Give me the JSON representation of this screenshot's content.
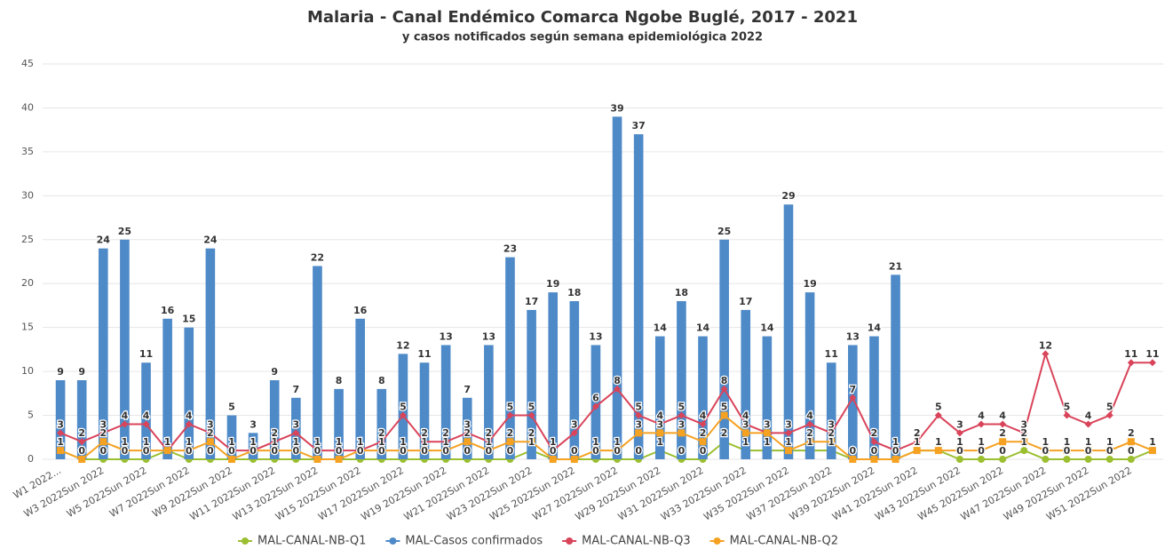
{
  "chart_data": {
    "type": "bar-line",
    "title": "Malaria - Canal Endémico Comarca Ngobe Buglé, 2017 - 2021",
    "subtitle": "y casos notificados según semana epidemiológica 2022",
    "categories": [
      "W1 2022...",
      null,
      "W3 2022Sun 2022",
      null,
      "W5 2022Sun 2022",
      null,
      "W7 2022Sun 2022",
      null,
      "W9 2022Sun 2022",
      null,
      "W11 2022Sun 2022",
      null,
      "W13 2022Sun 2022",
      null,
      "W15 2022Sun 2022",
      null,
      "W17 2022Sun 2022",
      null,
      "W19 2022Sun 2022",
      null,
      "W21 2022Sun 2022",
      null,
      "W23 2022Sun 2022",
      null,
      "W25 2022Sun 2022",
      null,
      "W27 2022Sun 2022",
      null,
      "W29 2022Sun 2022",
      null,
      "W31 2022Sun 2022",
      null,
      "W33 2022Sun 2022",
      null,
      "W35 2022Sun 2022",
      null,
      "W37 2022Sun 2022",
      null,
      "W39 2022Sun 2022",
      null,
      "W41 2022Sun 2022",
      null,
      "W43 2022Sun 2022",
      null,
      "W45 2022Sun 2022",
      null,
      "W47 2022Sun 2022",
      null,
      "W49 2022Sun 2022",
      null,
      "W51 2022Sun 2022",
      null
    ],
    "series": [
      {
        "name": "MAL-CANAL-NB-Q1",
        "type": "line",
        "color": "#9bbf30",
        "values": [
          1,
          0,
          0,
          0,
          0,
          1,
          0,
          0,
          0,
          0,
          0,
          0,
          0,
          0,
          0,
          0,
          0,
          0,
          0,
          0,
          0,
          0,
          1,
          0,
          0,
          0,
          0,
          0,
          1,
          0,
          0,
          2,
          1,
          1,
          1,
          1,
          1,
          0,
          0,
          0,
          1,
          1,
          0,
          0,
          0,
          1,
          0,
          0,
          0,
          0,
          0,
          1
        ]
      },
      {
        "name": "MAL-Casos confirmados",
        "type": "bar",
        "color": "#4e8ac8",
        "values": [
          9,
          9,
          24,
          25,
          11,
          16,
          15,
          24,
          5,
          3,
          9,
          7,
          22,
          8,
          16,
          8,
          12,
          11,
          13,
          7,
          13,
          23,
          17,
          19,
          18,
          13,
          39,
          37,
          14,
          18,
          14,
          25,
          17,
          14,
          29,
          19,
          11,
          13,
          14,
          21,
          null,
          null,
          null,
          null,
          null,
          null,
          null,
          null,
          null,
          null,
          null,
          null
        ]
      },
      {
        "name": "MAL-CANAL-NB-Q3",
        "type": "line",
        "color": "#d9445a",
        "values": [
          3,
          2,
          3,
          4,
          4,
          1,
          4,
          3,
          1,
          1,
          2,
          3,
          1,
          1,
          1,
          2,
          5,
          2,
          2,
          3,
          2,
          5,
          5,
          1,
          3,
          6,
          8,
          5,
          4,
          5,
          4,
          8,
          4,
          3,
          3,
          4,
          3,
          7,
          2,
          1,
          2,
          5,
          3,
          4,
          4,
          3,
          12,
          5,
          4,
          5,
          11,
          11
        ]
      },
      {
        "name": "MAL-CANAL-NB-Q2",
        "type": "line",
        "color": "#f5a122",
        "values": [
          1,
          0,
          2,
          1,
          1,
          1,
          1,
          2,
          0,
          1,
          1,
          1,
          0,
          0,
          1,
          1,
          1,
          1,
          1,
          2,
          1,
          2,
          2,
          0,
          0,
          1,
          1,
          3,
          3,
          3,
          2,
          5,
          3,
          3,
          1,
          2,
          2,
          0,
          0,
          0,
          1,
          1,
          1,
          1,
          2,
          2,
          1,
          1,
          1,
          1,
          2,
          1
        ]
      }
    ],
    "ylim": [
      0,
      45
    ],
    "yticks": [
      0,
      5,
      10,
      15,
      20,
      25,
      30,
      35,
      40,
      45
    ],
    "grid": true,
    "legend": "bottom"
  }
}
